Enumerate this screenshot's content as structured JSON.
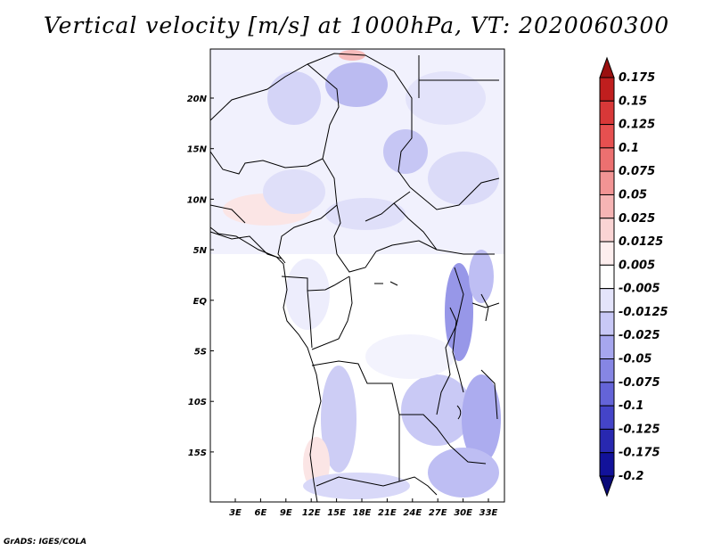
{
  "title": "Vertical velocity [m/s] at 1000hPa, VT: 2020060300",
  "footer": "GrADS: IGES/COLA",
  "map": {
    "lat_labels": [
      "20N",
      "15N",
      "10N",
      "5N",
      "EQ",
      "5S",
      "10S",
      "15S"
    ],
    "lon_labels": [
      "3E",
      "6E",
      "9E",
      "12E",
      "15E",
      "18E",
      "21E",
      "24E",
      "27E",
      "30E",
      "33E"
    ]
  },
  "colorbar": {
    "labels": [
      "0.175",
      "0.15",
      "0.125",
      "0.1",
      "0.075",
      "0.05",
      "0.025",
      "0.0125",
      "0.005",
      "-0.005",
      "-0.0125",
      "-0.025",
      "-0.05",
      "-0.075",
      "-0.1",
      "-0.125",
      "-0.175",
      "-0.2"
    ],
    "colors": [
      "#9a1010",
      "#c01e1e",
      "#d83838",
      "#e65050",
      "#ec7070",
      "#f29494",
      "#f6b4b4",
      "#fad4d4",
      "#fdeeee",
      "#ffffff",
      "#e4e4fb",
      "#c8c8f6",
      "#a6a6ee",
      "#8686e4",
      "#6464d8",
      "#4444c8",
      "#2828b0",
      "#12129a",
      "#0a0a78"
    ]
  }
}
